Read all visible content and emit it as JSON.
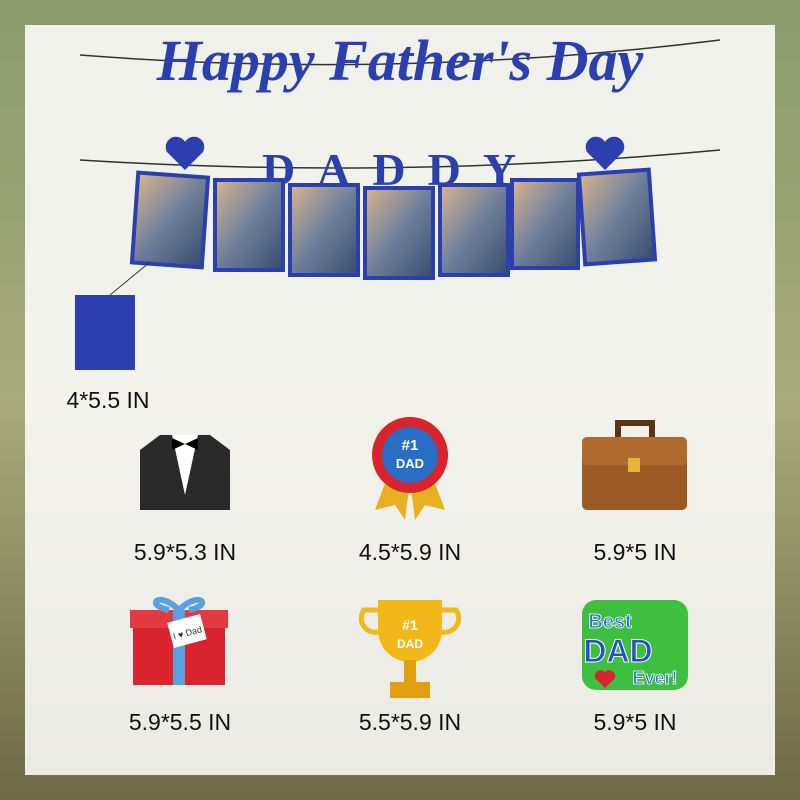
{
  "banner": {
    "title": "Happy Father's Day",
    "subtitle": "DADDY"
  },
  "card": {
    "size": "4*5.5 IN"
  },
  "items": [
    {
      "size": "5.9*5.3 IN"
    },
    {
      "badge": "#1",
      "label": "DAD",
      "size": "4.5*5.9 IN"
    },
    {
      "size": "5.9*5 IN"
    },
    {
      "tag": "I ♥ Dad",
      "size": "5.9*5.5 IN"
    },
    {
      "badge": "#1",
      "label": "DAD",
      "size": "5.5*5.9 IN"
    },
    {
      "line1": "Best",
      "line2": "DAD",
      "line3": "Ever!",
      "size": "5.9*5 IN"
    }
  ]
}
